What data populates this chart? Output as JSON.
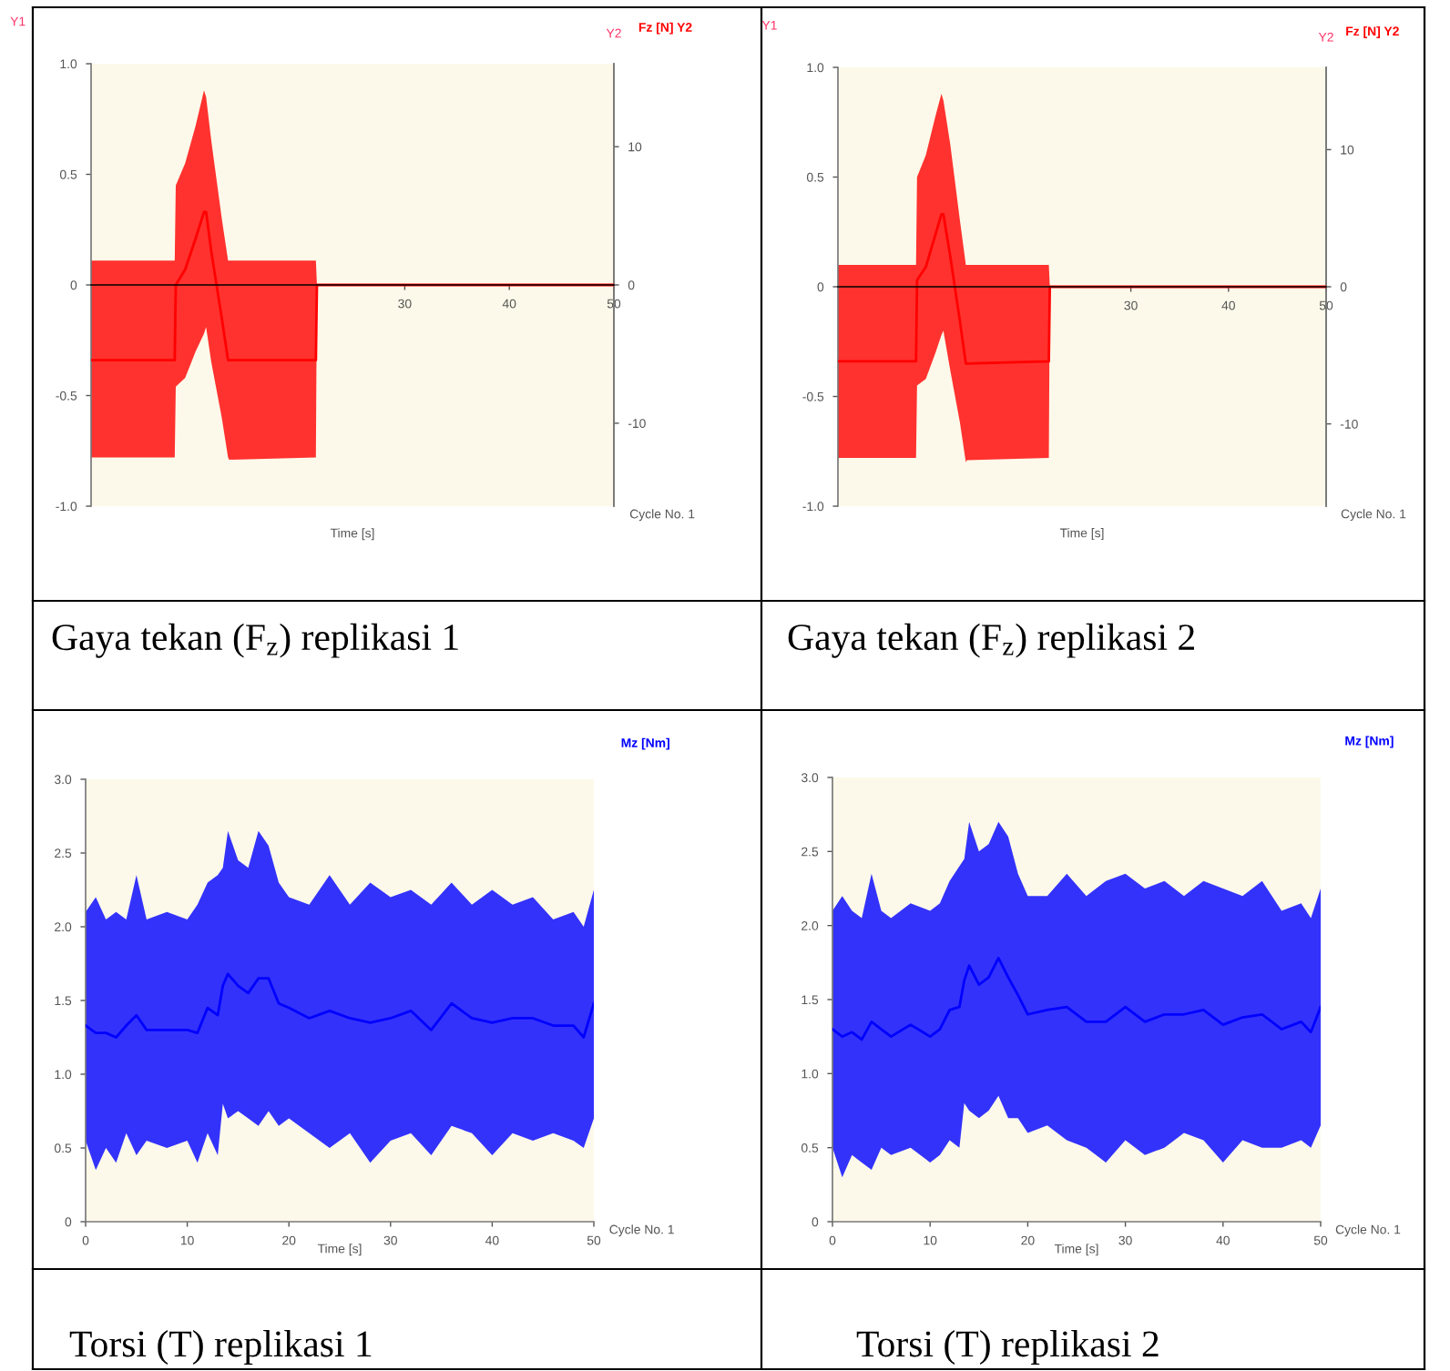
{
  "chart_data": [
    {
      "type": "line",
      "title": "Gaya tekan (F$_{z}$) replikasi 1",
      "xlabel": "Time [s]",
      "ylabel": "Y1",
      "y2label": "Y2",
      "annotations": [
        "Cycle No. 1"
      ],
      "x": [
        0,
        8.0,
        8.1,
        9.0,
        10.0,
        10.8,
        11.0,
        11.5,
        12.5,
        13.1,
        13.2,
        21.5,
        21.6,
        50
      ],
      "series": [
        {
          "name": "Fz [N] Y2",
          "color": "#ff0000",
          "values": [
            -0.34,
            -0.34,
            0,
            0.07,
            0.21,
            0.33,
            0.33,
            0.15,
            -0.15,
            -0.34,
            -0.34,
            -0.34,
            0,
            0
          ],
          "upper": [
            0.11,
            0.11,
            0.45,
            0.55,
            0.72,
            0.88,
            0.85,
            0.65,
            0.3,
            0.11,
            0.11,
            0.11,
            0,
            0
          ],
          "lower": [
            -0.78,
            -0.78,
            -0.46,
            -0.42,
            -0.3,
            -0.22,
            -0.19,
            -0.35,
            -0.6,
            -0.78,
            -0.79,
            -0.78,
            0,
            0
          ]
        }
      ],
      "xlim": [
        0,
        50
      ],
      "xticks": [
        30,
        40,
        50
      ],
      "ylim": [
        -1,
        1
      ],
      "yticks": [
        {
          "value": -1,
          "label": "-1.0"
        },
        -0.5,
        0,
        0.5,
        {
          "value": 1,
          "label": "1.0"
        }
      ],
      "y2lim": [
        -16,
        16
      ],
      "y2ticks": [
        -10,
        0,
        10
      ]
    },
    {
      "type": "line",
      "title": "Gaya tekan (F$_{z}$) replikasi 2",
      "xlabel": "Time [s]",
      "ylabel": "Y1",
      "y2label": "Y2",
      "annotations": [
        "Cycle No. 1"
      ],
      "x": [
        0,
        8.0,
        8.1,
        9.0,
        10.0,
        10.6,
        10.8,
        11.5,
        12.5,
        13.1,
        13.2,
        21.6,
        21.7,
        50
      ],
      "series": [
        {
          "name": "Fz [N] Y2",
          "color": "#ff0000",
          "values": [
            -0.34,
            -0.34,
            0.03,
            0.09,
            0.24,
            0.33,
            0.33,
            0.14,
            -0.16,
            -0.35,
            -0.35,
            -0.34,
            0,
            0
          ],
          "upper": [
            0.1,
            0.1,
            0.5,
            0.6,
            0.78,
            0.88,
            0.85,
            0.65,
            0.3,
            0.1,
            0.1,
            0.1,
            0,
            0
          ],
          "lower": [
            -0.78,
            -0.78,
            -0.45,
            -0.42,
            -0.3,
            -0.22,
            -0.2,
            -0.38,
            -0.62,
            -0.8,
            -0.79,
            -0.78,
            0,
            0
          ]
        }
      ],
      "xlim": [
        0,
        50
      ],
      "xticks": [
        30,
        40,
        50
      ],
      "ylim": [
        -1,
        1
      ],
      "yticks": [
        {
          "value": -1,
          "label": "-1.0"
        },
        -0.5,
        0,
        0.5,
        {
          "value": 1,
          "label": "1.0"
        }
      ],
      "y2lim": [
        -16,
        16
      ],
      "y2ticks": [
        -10,
        0,
        10
      ]
    },
    {
      "type": "line",
      "title": "Torsi (T) replikasi 1",
      "xlabel": "Time [s]",
      "annotations": [
        "Cycle No. 1"
      ],
      "x": [
        0,
        1,
        2,
        3,
        4,
        5,
        6,
        8,
        10,
        11,
        12,
        13,
        13.5,
        14,
        15,
        16,
        17,
        18,
        19,
        20,
        22,
        24,
        26,
        28,
        30,
        32,
        34,
        36,
        38,
        40,
        42,
        44,
        46,
        48,
        49,
        50
      ],
      "series": [
        {
          "name": "Mz [Nm]",
          "color": "#0000ff",
          "values": [
            1.33,
            1.28,
            1.28,
            1.25,
            1.33,
            1.4,
            1.3,
            1.3,
            1.3,
            1.28,
            1.45,
            1.4,
            1.6,
            1.68,
            1.6,
            1.55,
            1.65,
            1.65,
            1.48,
            1.45,
            1.38,
            1.43,
            1.38,
            1.35,
            1.38,
            1.43,
            1.3,
            1.48,
            1.38,
            1.35,
            1.38,
            1.38,
            1.33,
            1.33,
            1.25,
            1.48
          ],
          "upper": [
            2.1,
            2.2,
            2.05,
            2.1,
            2.05,
            2.35,
            2.05,
            2.1,
            2.05,
            2.15,
            2.3,
            2.35,
            2.4,
            2.65,
            2.45,
            2.4,
            2.65,
            2.55,
            2.3,
            2.2,
            2.15,
            2.35,
            2.15,
            2.3,
            2.2,
            2.25,
            2.15,
            2.3,
            2.15,
            2.25,
            2.15,
            2.2,
            2.05,
            2.1,
            2.0,
            2.25
          ],
          "lower": [
            0.55,
            0.35,
            0.5,
            0.4,
            0.6,
            0.45,
            0.55,
            0.5,
            0.55,
            0.4,
            0.6,
            0.45,
            0.8,
            0.7,
            0.75,
            0.7,
            0.65,
            0.75,
            0.65,
            0.7,
            0.6,
            0.5,
            0.6,
            0.4,
            0.55,
            0.6,
            0.45,
            0.65,
            0.6,
            0.45,
            0.6,
            0.55,
            0.6,
            0.55,
            0.5,
            0.7
          ]
        }
      ],
      "xlim": [
        0,
        50
      ],
      "xticks": [
        0,
        10,
        20,
        30,
        40,
        50
      ],
      "ylim": [
        0,
        3
      ],
      "yticks": [
        0,
        0.5,
        {
          "value": 1,
          "label": "1.0"
        },
        1.5,
        {
          "value": 2,
          "label": "2.0"
        },
        2.5,
        {
          "value": 3,
          "label": "3.0"
        }
      ]
    },
    {
      "type": "line",
      "title": "Torsi (T) replikasi 2",
      "xlabel": "Time [s]",
      "annotations": [
        "Cycle No. 1"
      ],
      "x": [
        0,
        1,
        2,
        3,
        4,
        5,
        6,
        8,
        10,
        11,
        12,
        13,
        13.5,
        14,
        15,
        16,
        17,
        18,
        19,
        20,
        22,
        24,
        26,
        28,
        30,
        32,
        34,
        36,
        38,
        40,
        42,
        44,
        46,
        48,
        49,
        50
      ],
      "series": [
        {
          "name": "Mz [Nm]",
          "color": "#0000ff",
          "values": [
            1.3,
            1.25,
            1.28,
            1.23,
            1.35,
            1.3,
            1.25,
            1.33,
            1.25,
            1.3,
            1.43,
            1.45,
            1.63,
            1.73,
            1.6,
            1.65,
            1.78,
            1.65,
            1.53,
            1.4,
            1.43,
            1.45,
            1.35,
            1.35,
            1.45,
            1.35,
            1.4,
            1.4,
            1.43,
            1.33,
            1.38,
            1.4,
            1.3,
            1.35,
            1.28,
            1.45
          ],
          "upper": [
            2.1,
            2.2,
            2.1,
            2.05,
            2.35,
            2.1,
            2.05,
            2.15,
            2.1,
            2.15,
            2.3,
            2.4,
            2.45,
            2.7,
            2.5,
            2.55,
            2.7,
            2.6,
            2.35,
            2.2,
            2.2,
            2.35,
            2.2,
            2.3,
            2.35,
            2.25,
            2.3,
            2.2,
            2.3,
            2.25,
            2.2,
            2.3,
            2.1,
            2.15,
            2.05,
            2.25
          ],
          "lower": [
            0.5,
            0.3,
            0.45,
            0.4,
            0.35,
            0.5,
            0.45,
            0.5,
            0.4,
            0.45,
            0.55,
            0.5,
            0.8,
            0.75,
            0.7,
            0.75,
            0.85,
            0.7,
            0.7,
            0.6,
            0.65,
            0.55,
            0.5,
            0.4,
            0.55,
            0.45,
            0.5,
            0.6,
            0.55,
            0.4,
            0.55,
            0.5,
            0.5,
            0.55,
            0.5,
            0.65
          ]
        }
      ],
      "xlim": [
        0,
        50
      ],
      "xticks": [
        0,
        10,
        20,
        30,
        40,
        50
      ],
      "ylim": [
        0,
        3
      ],
      "yticks": [
        0,
        0.5,
        {
          "value": 1,
          "label": "1.0"
        },
        1.5,
        {
          "value": 2,
          "label": "2.0"
        },
        2.5,
        {
          "value": 3,
          "label": "3.0"
        }
      ]
    }
  ]
}
